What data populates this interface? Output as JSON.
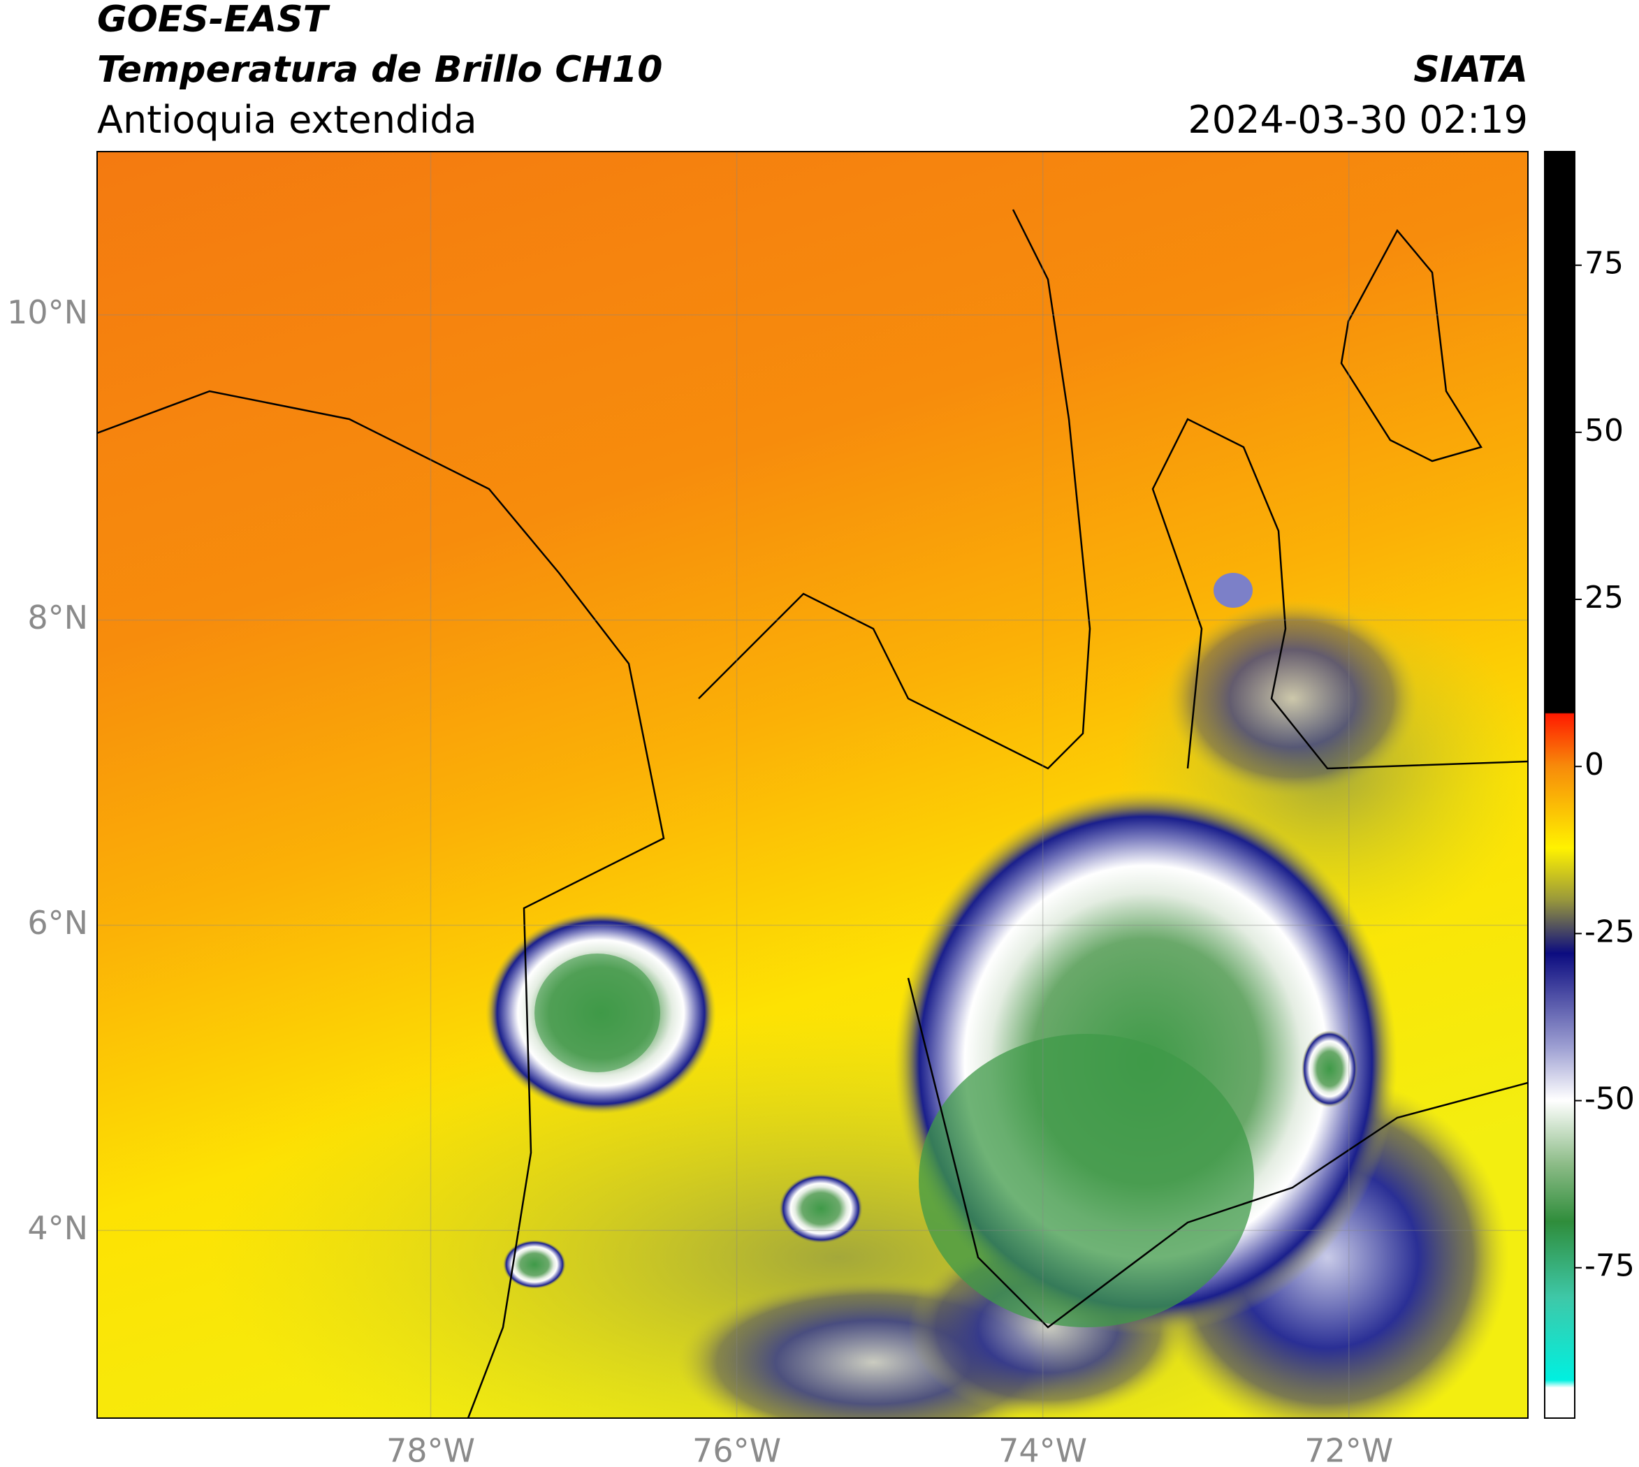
{
  "header": {
    "title": "GOES-EAST",
    "subtitle": "Temperatura de Brillo CH10",
    "region": "Antioquia extendida",
    "source": "SIATA",
    "timestamp": "2024-03-30 02:19"
  },
  "map": {
    "xlim": [
      -80.18,
      -70.83
    ],
    "ylim": [
      2.77,
      11.07
    ],
    "xticks": [
      {
        "value": -78,
        "label": "78°W"
      },
      {
        "value": -76,
        "label": "76°W"
      },
      {
        "value": -74,
        "label": "74°W"
      },
      {
        "value": -72,
        "label": "72°W"
      }
    ],
    "yticks": [
      {
        "value": 4,
        "label": "4°N"
      },
      {
        "value": 6,
        "label": "6°N"
      },
      {
        "value": 8,
        "label": "8°N"
      },
      {
        "value": 10,
        "label": "10°N"
      }
    ]
  },
  "colorbar": {
    "ylim": [
      -97.5,
      92
    ],
    "yticks": [
      -75,
      -50,
      -25,
      0,
      25,
      50,
      75
    ]
  }
}
